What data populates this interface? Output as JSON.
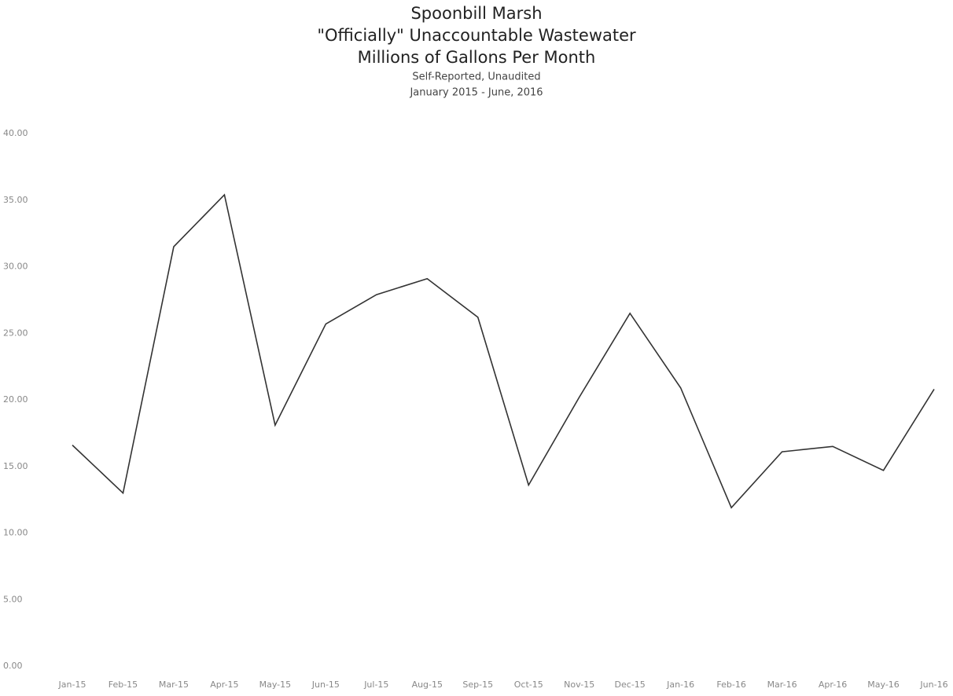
{
  "chart_data": {
    "type": "line",
    "title": "Spoonbill Marsh",
    "title_lines": [
      "\"Officially\" Unaccountable Wastewater",
      "Millions of Gallons Per Month"
    ],
    "subtitle_lines": [
      "Self-Reported, Unaudited",
      "January 2015 - June, 2016"
    ],
    "categories": [
      "Jan-15",
      "Feb-15",
      "Mar-15",
      "Apr-15",
      "May-15",
      "Jun-15",
      "Jul-15",
      "Aug-15",
      "Sep-15",
      "Oct-15",
      "Nov-15",
      "Dec-15",
      "Jan-16",
      "Feb-16",
      "Mar-16",
      "Apr-16",
      "May-16",
      "Jun-16"
    ],
    "series": [
      {
        "name": "Wastewater",
        "color": "#333333",
        "values": [
          16.6,
          13.0,
          31.5,
          35.4,
          18.1,
          25.7,
          27.9,
          29.1,
          26.2,
          13.6,
          20.2,
          26.5,
          20.9,
          11.9,
          16.1,
          16.5,
          14.7,
          20.8
        ]
      }
    ],
    "ylim": [
      0,
      40
    ],
    "yticks": [
      {
        "value": 0,
        "label": "0.00"
      },
      {
        "value": 5,
        "label": "5.00"
      },
      {
        "value": 10,
        "label": "10.00"
      },
      {
        "value": 15,
        "label": "15.00"
      },
      {
        "value": 20,
        "label": "20.00"
      },
      {
        "value": 25,
        "label": "25.00"
      },
      {
        "value": 30,
        "label": "30.00"
      },
      {
        "value": 35,
        "label": "35.00"
      },
      {
        "value": 40,
        "label": "40.00"
      }
    ],
    "grid": false
  }
}
